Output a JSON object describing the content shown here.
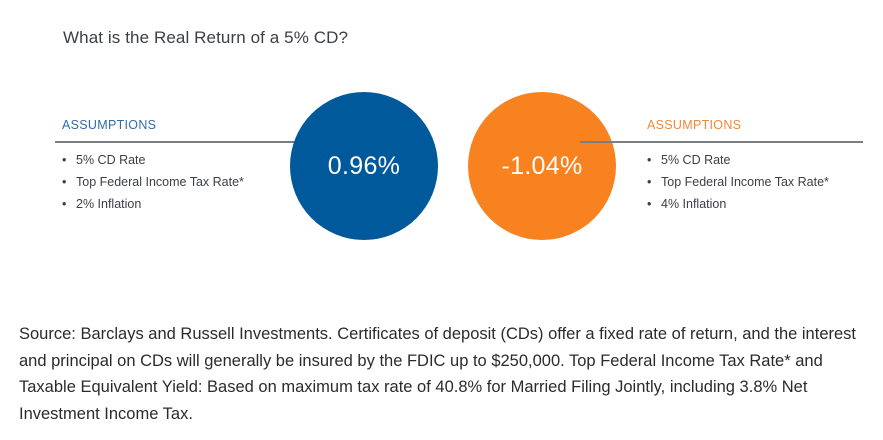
{
  "title": "What is the Real Return of a 5% CD?",
  "left_panel": {
    "heading": "ASSUMPTIONS",
    "items": [
      "5% CD Rate",
      "Top Federal Income Tax Rate*",
      "2% Inflation"
    ],
    "result": "0.96%",
    "color": "#00599b"
  },
  "right_panel": {
    "heading": "ASSUMPTIONS",
    "items": [
      "5% CD Rate",
      "Top Federal Income Tax Rate*",
      "4% Inflation"
    ],
    "result": "-1.04%",
    "color": "#f7821f"
  },
  "source_note": "Source: Barclays and Russell Investments. Certificates of deposit (CDs) offer a fixed rate of return, and the interest and principal on CDs will generally be insured by the FDIC up to $250,000. Top Federal Income Tax Rate* and Taxable Equivalent Yield: Based on maximum tax rate of 40.8% for Married Filing Jointly, including 3.8% Net Investment Income Tax."
}
